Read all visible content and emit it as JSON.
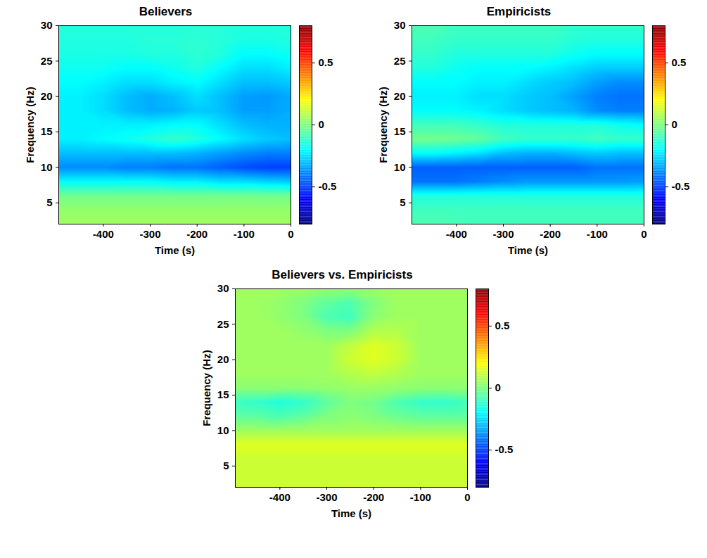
{
  "chart_data": [
    {
      "type": "heatmap",
      "title": "Believers",
      "x_label": "Time (s)",
      "y_label": "Frequency (Hz)",
      "x": [
        -500,
        -450,
        -400,
        -350,
        -300,
        -250,
        -200,
        -150,
        -100,
        -50,
        0
      ],
      "y": [
        2,
        4,
        6,
        8,
        10,
        12,
        14,
        16,
        18,
        20,
        22,
        24,
        26,
        28,
        30
      ],
      "cells": [
        [
          0.05,
          0.05,
          0.05,
          0.05,
          0.05,
          0.05,
          0.05,
          0.05,
          0.05,
          0.05,
          0.05
        ],
        [
          0.03,
          0.03,
          0.03,
          0.03,
          0.03,
          0.03,
          0.03,
          0.03,
          0.03,
          0.03,
          0.03
        ],
        [
          -0.02,
          -0.02,
          -0.02,
          -0.02,
          -0.02,
          -0.02,
          -0.02,
          -0.02,
          -0.02,
          -0.02,
          -0.02
        ],
        [
          -0.2,
          -0.2,
          -0.2,
          -0.2,
          -0.2,
          -0.22,
          -0.22,
          -0.25,
          -0.25,
          -0.27,
          -0.28
        ],
        [
          -0.38,
          -0.38,
          -0.38,
          -0.4,
          -0.4,
          -0.42,
          -0.42,
          -0.45,
          -0.48,
          -0.5,
          -0.5
        ],
        [
          -0.3,
          -0.3,
          -0.3,
          -0.3,
          -0.3,
          -0.3,
          -0.32,
          -0.35,
          -0.38,
          -0.4,
          -0.4
        ],
        [
          -0.22,
          -0.22,
          -0.2,
          -0.18,
          -0.15,
          -0.12,
          -0.15,
          -0.2,
          -0.25,
          -0.28,
          -0.3
        ],
        [
          -0.22,
          -0.22,
          -0.22,
          -0.22,
          -0.22,
          -0.2,
          -0.2,
          -0.25,
          -0.3,
          -0.32,
          -0.32
        ],
        [
          -0.22,
          -0.22,
          -0.25,
          -0.3,
          -0.33,
          -0.32,
          -0.28,
          -0.3,
          -0.35,
          -0.35,
          -0.33
        ],
        [
          -0.22,
          -0.22,
          -0.25,
          -0.3,
          -0.33,
          -0.3,
          -0.25,
          -0.3,
          -0.35,
          -0.36,
          -0.33
        ],
        [
          -0.2,
          -0.2,
          -0.22,
          -0.25,
          -0.25,
          -0.22,
          -0.2,
          -0.25,
          -0.3,
          -0.3,
          -0.28
        ],
        [
          -0.18,
          -0.18,
          -0.18,
          -0.2,
          -0.2,
          -0.18,
          -0.15,
          -0.2,
          -0.25,
          -0.25,
          -0.22
        ],
        [
          -0.16,
          -0.16,
          -0.16,
          -0.16,
          -0.15,
          -0.15,
          -0.13,
          -0.15,
          -0.2,
          -0.2,
          -0.18
        ],
        [
          -0.15,
          -0.15,
          -0.15,
          -0.15,
          -0.14,
          -0.14,
          -0.13,
          -0.14,
          -0.16,
          -0.16,
          -0.15
        ],
        [
          -0.15,
          -0.15,
          -0.15,
          -0.15,
          -0.15,
          -0.15,
          -0.14,
          -0.14,
          -0.15,
          -0.15,
          -0.15
        ]
      ],
      "xlim": [
        -495,
        0
      ],
      "xticks": [
        -400,
        -300,
        -200,
        -100,
        0
      ],
      "ylim": [
        2,
        30
      ],
      "yticks": [
        5,
        10,
        15,
        20,
        25,
        30
      ],
      "colorbar_range": [
        -0.8,
        0.8
      ],
      "colorbar_ticks": [
        -0.5,
        0,
        0.5
      ]
    },
    {
      "type": "heatmap",
      "title": "Empiricists",
      "x_label": "Time (s)",
      "y_label": "Frequency (Hz)",
      "x": [
        -500,
        -450,
        -400,
        -350,
        -300,
        -250,
        -200,
        -150,
        -100,
        -50,
        0
      ],
      "y": [
        2,
        4,
        6,
        8,
        10,
        12,
        14,
        16,
        18,
        20,
        22,
        24,
        26,
        28,
        30
      ],
      "cells": [
        [
          -0.08,
          -0.08,
          -0.09,
          -0.1,
          -0.1,
          -0.1,
          -0.1,
          -0.1,
          -0.1,
          -0.1,
          -0.1
        ],
        [
          -0.1,
          -0.1,
          -0.1,
          -0.1,
          -0.1,
          -0.1,
          -0.1,
          -0.1,
          -0.1,
          -0.1,
          -0.1
        ],
        [
          -0.15,
          -0.15,
          -0.15,
          -0.15,
          -0.15,
          -0.15,
          -0.15,
          -0.15,
          -0.15,
          -0.15,
          -0.15
        ],
        [
          -0.42,
          -0.42,
          -0.42,
          -0.4,
          -0.38,
          -0.36,
          -0.36,
          -0.36,
          -0.36,
          -0.36,
          -0.35
        ],
        [
          -0.45,
          -0.45,
          -0.45,
          -0.45,
          -0.45,
          -0.45,
          -0.45,
          -0.45,
          -0.42,
          -0.42,
          -0.42
        ],
        [
          -0.2,
          -0.2,
          -0.22,
          -0.25,
          -0.3,
          -0.32,
          -0.32,
          -0.3,
          -0.28,
          -0.3,
          -0.3
        ],
        [
          -0.02,
          -0.02,
          -0.03,
          -0.05,
          -0.1,
          -0.12,
          -0.12,
          -0.12,
          -0.1,
          -0.12,
          -0.12
        ],
        [
          -0.1,
          -0.1,
          -0.1,
          -0.12,
          -0.15,
          -0.15,
          -0.15,
          -0.15,
          -0.15,
          -0.18,
          -0.2
        ],
        [
          -0.2,
          -0.2,
          -0.2,
          -0.22,
          -0.25,
          -0.28,
          -0.3,
          -0.32,
          -0.38,
          -0.4,
          -0.4
        ],
        [
          -0.22,
          -0.22,
          -0.22,
          -0.25,
          -0.25,
          -0.28,
          -0.3,
          -0.35,
          -0.4,
          -0.42,
          -0.42
        ],
        [
          -0.2,
          -0.2,
          -0.2,
          -0.22,
          -0.22,
          -0.25,
          -0.28,
          -0.3,
          -0.35,
          -0.38,
          -0.38
        ],
        [
          -0.15,
          -0.15,
          -0.18,
          -0.2,
          -0.2,
          -0.2,
          -0.22,
          -0.25,
          -0.28,
          -0.28,
          -0.28
        ],
        [
          -0.12,
          -0.12,
          -0.15,
          -0.15,
          -0.15,
          -0.15,
          -0.15,
          -0.18,
          -0.2,
          -0.2,
          -0.2
        ],
        [
          -0.1,
          -0.1,
          -0.12,
          -0.12,
          -0.12,
          -0.12,
          -0.12,
          -0.14,
          -0.15,
          -0.15,
          -0.15
        ],
        [
          -0.08,
          -0.08,
          -0.1,
          -0.1,
          -0.1,
          -0.1,
          -0.1,
          -0.12,
          -0.12,
          -0.12,
          -0.12
        ]
      ],
      "xlim": [
        -495,
        0
      ],
      "xticks": [
        -400,
        -300,
        -200,
        -100,
        0
      ],
      "ylim": [
        2,
        30
      ],
      "yticks": [
        5,
        10,
        15,
        20,
        25,
        30
      ],
      "colorbar_range": [
        -0.8,
        0.8
      ],
      "colorbar_ticks": [
        -0.5,
        0,
        0.5
      ]
    },
    {
      "type": "heatmap",
      "title": "Believers vs. Empiricists",
      "x_label": "Time (s)",
      "y_label": "Frequency (Hz)",
      "x": [
        -500,
        -450,
        -400,
        -350,
        -300,
        -250,
        -200,
        -150,
        -100,
        -50,
        0
      ],
      "y": [
        2,
        4,
        6,
        8,
        10,
        12,
        14,
        16,
        18,
        20,
        22,
        24,
        26,
        28,
        30
      ],
      "cells": [
        [
          0.12,
          0.12,
          0.12,
          0.12,
          0.12,
          0.12,
          0.12,
          0.12,
          0.12,
          0.12,
          0.12
        ],
        [
          0.12,
          0.12,
          0.12,
          0.12,
          0.12,
          0.12,
          0.12,
          0.12,
          0.12,
          0.12,
          0.12
        ],
        [
          0.12,
          0.12,
          0.12,
          0.12,
          0.12,
          0.12,
          0.12,
          0.12,
          0.12,
          0.12,
          0.12
        ],
        [
          0.15,
          0.15,
          0.15,
          0.15,
          0.15,
          0.15,
          0.15,
          0.15,
          0.15,
          0.15,
          0.15
        ],
        [
          0.05,
          0.05,
          0.05,
          0.05,
          0.05,
          0.05,
          0.05,
          0.05,
          0.05,
          0.05,
          0.05
        ],
        [
          -0.05,
          -0.05,
          -0.08,
          -0.05,
          0,
          0.02,
          0,
          -0.03,
          -0.05,
          -0.05,
          -0.05
        ],
        [
          -0.1,
          -0.12,
          -0.15,
          -0.12,
          -0.05,
          0,
          -0.02,
          -0.08,
          -0.12,
          -0.12,
          -0.1
        ],
        [
          0.02,
          0.02,
          0.02,
          0.02,
          0.03,
          0.04,
          0.04,
          0.03,
          0.02,
          0.02,
          0.02
        ],
        [
          0.05,
          0.05,
          0.05,
          0.05,
          0.05,
          0.08,
          0.1,
          0.08,
          0.05,
          0.05,
          0.05
        ],
        [
          0.05,
          0.05,
          0.05,
          0.05,
          0.05,
          0.12,
          0.15,
          0.12,
          0.05,
          0.05,
          0.05
        ],
        [
          0.05,
          0.05,
          0.05,
          0.05,
          0.05,
          0.1,
          0.15,
          0.12,
          0.05,
          0.05,
          0.05
        ],
        [
          0.05,
          0.05,
          0.05,
          0.03,
          0,
          0,
          0.08,
          0.08,
          0.05,
          0.05,
          0.05
        ],
        [
          0.05,
          0.05,
          0.03,
          0,
          -0.08,
          -0.1,
          0.02,
          0.05,
          0.05,
          0.05,
          0.05
        ],
        [
          0.05,
          0.05,
          0.03,
          0,
          -0.05,
          -0.08,
          0,
          0.05,
          0.05,
          0.05,
          0.05
        ],
        [
          0.05,
          0.05,
          0.05,
          0.05,
          0.03,
          0.02,
          0.04,
          0.05,
          0.05,
          0.05,
          0.05
        ]
      ],
      "xlim": [
        -495,
        0
      ],
      "xticks": [
        -400,
        -300,
        -200,
        -100,
        0
      ],
      "ylim": [
        2,
        30
      ],
      "yticks": [
        5,
        10,
        15,
        20,
        25,
        30
      ],
      "colorbar_range": [
        -0.8,
        0.8
      ],
      "colorbar_ticks": [
        -0.5,
        0,
        0.5
      ]
    }
  ]
}
